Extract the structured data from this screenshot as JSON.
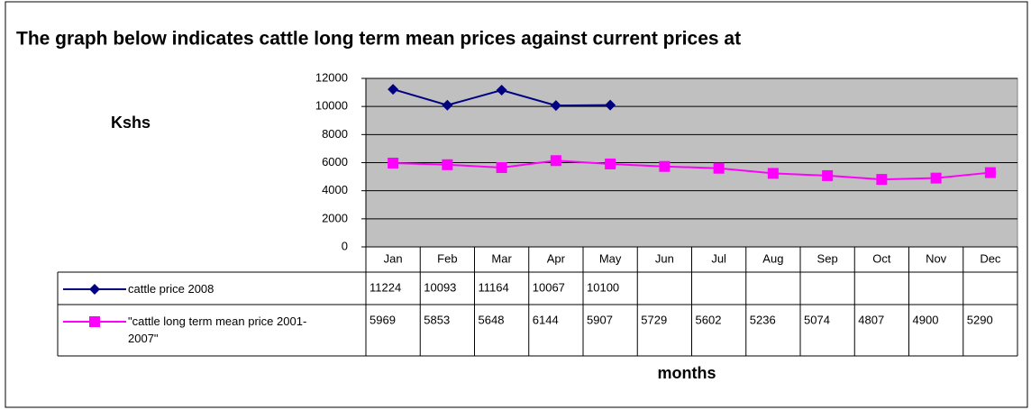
{
  "chart_data": {
    "type": "line",
    "title": "The graph below indicates cattle long term mean prices against current prices at",
    "y_label": "Kshs",
    "x_label": "months",
    "categories": [
      "Jan",
      "Feb",
      "Mar",
      "Apr",
      "May",
      "Jun",
      "Jul",
      "Aug",
      "Sep",
      "Oct",
      "Nov",
      "Dec"
    ],
    "series": [
      {
        "name": "cattle price 2008",
        "color": "#000080",
        "marker": "diamond",
        "values": [
          11224,
          10093,
          11164,
          10067,
          10100,
          null,
          null,
          null,
          null,
          null,
          null,
          null
        ]
      },
      {
        "name": "\"cattle long term mean price 2001-2007\"",
        "color": "#ff00ff",
        "marker": "square",
        "values": [
          5969,
          5853,
          5648,
          6144,
          5907,
          5729,
          5602,
          5236,
          5074,
          4807,
          4900,
          5290
        ]
      }
    ],
    "ylim": [
      0,
      12000
    ],
    "yticks": [
      0,
      2000,
      4000,
      6000,
      8000,
      10000,
      12000
    ],
    "grid": true,
    "plot_background": "#c0c0c0"
  }
}
